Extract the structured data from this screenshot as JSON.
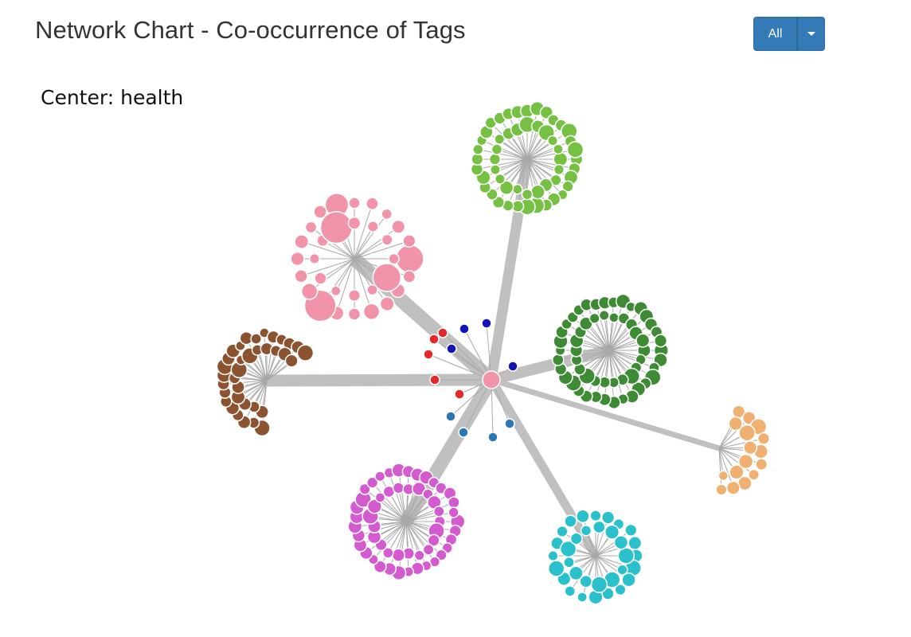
{
  "header": {
    "title": "Network Chart - Co-occurrence of Tags"
  },
  "filter": {
    "label": "All"
  },
  "center": {
    "prefix": "Center:",
    "tag": "health"
  },
  "colors": {
    "link_main": "#c0c0c0",
    "link_spoke": "#a8a8a8",
    "center_node": "#f193a9",
    "red_dot": "#e5292a",
    "navy_dot": "#1313b8",
    "steel_dot": "#2a77b4"
  },
  "network": {
    "center_tag": "health",
    "clusters": [
      {
        "id": "green-light",
        "color": "#76c143",
        "node_count": 52,
        "link_weight": 13
      },
      {
        "id": "pink",
        "color": "#f193a9",
        "node_count": 32,
        "link_weight": 18
      },
      {
        "id": "green-dark",
        "color": "#3f8b35",
        "node_count": 56,
        "link_weight": 14
      },
      {
        "id": "brown",
        "color": "#8b5330",
        "node_count": 35,
        "link_weight": 15
      },
      {
        "id": "magenta",
        "color": "#d35bcf",
        "node_count": 54,
        "link_weight": 17
      },
      {
        "id": "cyan",
        "color": "#2bc1cc",
        "node_count": 33,
        "link_weight": 11
      },
      {
        "id": "orange",
        "color": "#efb072",
        "node_count": 16,
        "link_weight": 7
      }
    ],
    "satellite_groups": [
      {
        "id": "red",
        "color": "#e5292a",
        "node_count": 5
      },
      {
        "id": "navy",
        "color": "#1313b8",
        "node_count": 4
      },
      {
        "id": "steel",
        "color": "#2a77b4",
        "node_count": 4
      }
    ]
  }
}
